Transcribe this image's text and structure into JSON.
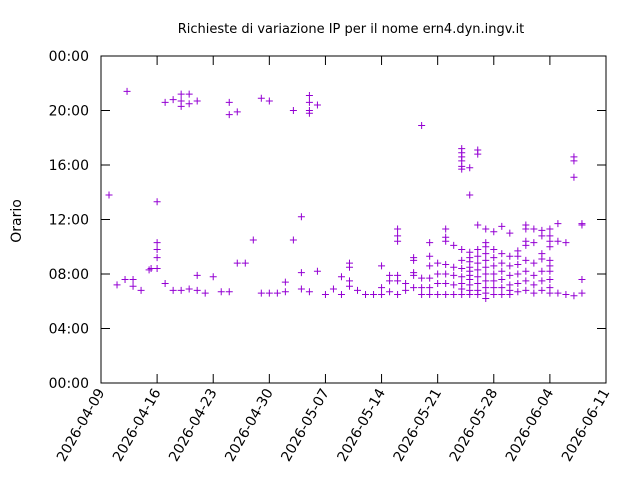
{
  "chart_data": {
    "type": "scatter",
    "title": "Richieste di variazione IP per il nome ern4.dyn.ingv.it",
    "xlabel": "",
    "ylabel": "Orario",
    "marker": "+",
    "color": "#9400d3",
    "grid": false,
    "xlim": [
      "2026-04-09",
      "2026-06-11"
    ],
    "ylim": [
      0,
      24
    ],
    "x_ticks": [
      "2026-04-09",
      "2026-04-16",
      "2026-04-23",
      "2026-04-30",
      "2026-05-07",
      "2026-05-14",
      "2026-05-21",
      "2026-05-28",
      "2026-06-04",
      "2026-06-11"
    ],
    "y_ticks": [
      "00:00",
      "04:00",
      "08:00",
      "12:00",
      "16:00",
      "20:00",
      "00:00"
    ],
    "points": [
      [
        "2026-04-10 00:00",
        13.8
      ],
      [
        "2026-04-11 00:00",
        7.2
      ],
      [
        "2026-04-12 00:00",
        7.6
      ],
      [
        "2026-04-12 06:00",
        21.4
      ],
      [
        "2026-04-13 00:00",
        7.6
      ],
      [
        "2026-04-13 00:00",
        7.1
      ],
      [
        "2026-04-14 00:00",
        6.8
      ],
      [
        "2026-04-15 00:00",
        8.3
      ],
      [
        "2026-04-15 06:00",
        8.4
      ],
      [
        "2026-04-16 00:00",
        13.3
      ],
      [
        "2026-04-16 00:00",
        10.3
      ],
      [
        "2026-04-16 00:00",
        9.8
      ],
      [
        "2026-04-16 00:00",
        9.2
      ],
      [
        "2026-04-16 00:00",
        8.4
      ],
      [
        "2026-04-17 00:00",
        20.6
      ],
      [
        "2026-04-17 00:00",
        7.3
      ],
      [
        "2026-04-18 00:00",
        20.8
      ],
      [
        "2026-04-18 00:00",
        6.8
      ],
      [
        "2026-04-19 00:00",
        21.2
      ],
      [
        "2026-04-19 00:00",
        20.7
      ],
      [
        "2026-04-19 00:00",
        20.3
      ],
      [
        "2026-04-19 00:00",
        6.8
      ],
      [
        "2026-04-20 00:00",
        21.2
      ],
      [
        "2026-04-20 00:00",
        20.5
      ],
      [
        "2026-04-20 00:00",
        6.9
      ],
      [
        "2026-04-21 00:00",
        20.7
      ],
      [
        "2026-04-21 00:00",
        7.9
      ],
      [
        "2026-04-21 00:00",
        6.8
      ],
      [
        "2026-04-22 00:00",
        6.6
      ],
      [
        "2026-04-23 00:00",
        7.8
      ],
      [
        "2026-04-24 00:00",
        6.7
      ],
      [
        "2026-04-25 00:00",
        20.6
      ],
      [
        "2026-04-25 00:00",
        19.7
      ],
      [
        "2026-04-25 00:00",
        6.7
      ],
      [
        "2026-04-26 00:00",
        19.9
      ],
      [
        "2026-04-26 00:00",
        8.8
      ],
      [
        "2026-04-27 00:00",
        8.8
      ],
      [
        "2026-04-28 00:00",
        10.5
      ],
      [
        "2026-04-29 00:00",
        20.9
      ],
      [
        "2026-04-29 00:00",
        6.6
      ],
      [
        "2026-04-30 00:00",
        20.7
      ],
      [
        "2026-04-30 00:00",
        6.6
      ],
      [
        "2026-05-01 00:00",
        6.6
      ],
      [
        "2026-05-02 00:00",
        7.4
      ],
      [
        "2026-05-02 00:00",
        6.7
      ],
      [
        "2026-05-03 00:00",
        20.0
      ],
      [
        "2026-05-03 00:00",
        10.5
      ],
      [
        "2026-05-04 00:00",
        12.2
      ],
      [
        "2026-05-04 00:00",
        8.1
      ],
      [
        "2026-05-04 00:00",
        6.9
      ],
      [
        "2026-05-05 00:00",
        21.1
      ],
      [
        "2026-05-05 00:00",
        20.6
      ],
      [
        "2026-05-05 00:00",
        20.0
      ],
      [
        "2026-05-05 00:00",
        19.8
      ],
      [
        "2026-05-05 00:00",
        6.7
      ],
      [
        "2026-05-06 00:00",
        20.4
      ],
      [
        "2026-05-06 00:00",
        8.2
      ],
      [
        "2026-05-07 00:00",
        6.5
      ],
      [
        "2026-05-08 00:00",
        6.9
      ],
      [
        "2026-05-09 00:00",
        7.8
      ],
      [
        "2026-05-09 00:00",
        6.5
      ],
      [
        "2026-05-10 00:00",
        8.8
      ],
      [
        "2026-05-10 00:00",
        8.5
      ],
      [
        "2026-05-10 00:00",
        7.5
      ],
      [
        "2026-05-10 00:00",
        7.1
      ],
      [
        "2026-05-11 00:00",
        6.8
      ],
      [
        "2026-05-12 00:00",
        6.5
      ],
      [
        "2026-05-13 00:00",
        6.5
      ],
      [
        "2026-05-14 00:00",
        8.6
      ],
      [
        "2026-05-14 00:00",
        7.0
      ],
      [
        "2026-05-14 00:00",
        6.5
      ],
      [
        "2026-05-15 00:00",
        7.9
      ],
      [
        "2026-05-15 00:00",
        7.5
      ],
      [
        "2026-05-15 00:00",
        6.7
      ],
      [
        "2026-05-16 00:00",
        11.3
      ],
      [
        "2026-05-16 00:00",
        10.8
      ],
      [
        "2026-05-16 00:00",
        10.4
      ],
      [
        "2026-05-16 00:00",
        7.9
      ],
      [
        "2026-05-16 00:00",
        7.5
      ],
      [
        "2026-05-16 00:00",
        6.5
      ],
      [
        "2026-05-17 00:00",
        7.3
      ],
      [
        "2026-05-17 00:00",
        6.8
      ],
      [
        "2026-05-18 00:00",
        9.2
      ],
      [
        "2026-05-18 00:00",
        9.0
      ],
      [
        "2026-05-18 00:00",
        8.1
      ],
      [
        "2026-05-18 00:00",
        7.9
      ],
      [
        "2026-05-18 00:00",
        7.0
      ],
      [
        "2026-05-19 00:00",
        18.9
      ],
      [
        "2026-05-19 00:00",
        7.7
      ],
      [
        "2026-05-19 00:00",
        7.0
      ],
      [
        "2026-05-19 00:00",
        6.5
      ],
      [
        "2026-05-20 00:00",
        10.3
      ],
      [
        "2026-05-20 00:00",
        9.3
      ],
      [
        "2026-05-20 00:00",
        8.6
      ],
      [
        "2026-05-20 00:00",
        7.7
      ],
      [
        "2026-05-20 00:00",
        7.0
      ],
      [
        "2026-05-20 00:00",
        6.5
      ],
      [
        "2026-05-21 00:00",
        8.8
      ],
      [
        "2026-05-21 00:00",
        8.0
      ],
      [
        "2026-05-21 00:00",
        7.3
      ],
      [
        "2026-05-21 00:00",
        6.5
      ],
      [
        "2026-05-22 00:00",
        11.3
      ],
      [
        "2026-05-22 00:00",
        10.7
      ],
      [
        "2026-05-22 00:00",
        10.4
      ],
      [
        "2026-05-22 00:00",
        8.7
      ],
      [
        "2026-05-22 00:00",
        8.0
      ],
      [
        "2026-05-22 00:00",
        7.3
      ],
      [
        "2026-05-22 00:00",
        6.5
      ],
      [
        "2026-05-23 00:00",
        10.1
      ],
      [
        "2026-05-23 00:00",
        8.5
      ],
      [
        "2026-05-23 00:00",
        7.9
      ],
      [
        "2026-05-23 00:00",
        7.2
      ],
      [
        "2026-05-23 00:00",
        6.5
      ],
      [
        "2026-05-24 00:00",
        17.2
      ],
      [
        "2026-05-24 00:00",
        16.9
      ],
      [
        "2026-05-24 00:00",
        16.6
      ],
      [
        "2026-05-24 00:00",
        16.3
      ],
      [
        "2026-05-24 00:00",
        15.9
      ],
      [
        "2026-05-24 00:00",
        15.7
      ],
      [
        "2026-05-24 00:00",
        9.8
      ],
      [
        "2026-05-24 00:00",
        9.0
      ],
      [
        "2026-05-24 00:00",
        8.4
      ],
      [
        "2026-05-24 00:00",
        7.8
      ],
      [
        "2026-05-24 00:00",
        7.3
      ],
      [
        "2026-05-24 00:00",
        6.9
      ],
      [
        "2026-05-24 00:00",
        6.5
      ],
      [
        "2026-05-25 00:00",
        15.8
      ],
      [
        "2026-05-25 00:00",
        13.8
      ],
      [
        "2026-05-25 00:00",
        9.6
      ],
      [
        "2026-05-25 00:00",
        9.2
      ],
      [
        "2026-05-25 00:00",
        8.9
      ],
      [
        "2026-05-25 00:00",
        8.5
      ],
      [
        "2026-05-25 00:00",
        8.2
      ],
      [
        "2026-05-25 00:00",
        7.9
      ],
      [
        "2026-05-25 00:00",
        7.6
      ],
      [
        "2026-05-25 00:00",
        7.2
      ],
      [
        "2026-05-25 00:00",
        6.8
      ],
      [
        "2026-05-25 00:00",
        6.5
      ],
      [
        "2026-05-26 00:00",
        17.1
      ],
      [
        "2026-05-26 00:00",
        16.8
      ],
      [
        "2026-05-26 00:00",
        11.6
      ],
      [
        "2026-05-26 00:00",
        9.8
      ],
      [
        "2026-05-26 00:00",
        9.3
      ],
      [
        "2026-05-26 00:00",
        8.8
      ],
      [
        "2026-05-26 00:00",
        8.3
      ],
      [
        "2026-05-26 00:00",
        7.8
      ],
      [
        "2026-05-26 00:00",
        7.3
      ],
      [
        "2026-05-26 00:00",
        6.8
      ],
      [
        "2026-05-26 00:00",
        6.5
      ],
      [
        "2026-05-27 00:00",
        11.3
      ],
      [
        "2026-05-27 00:00",
        10.3
      ],
      [
        "2026-05-27 00:00",
        10.0
      ],
      [
        "2026-05-27 00:00",
        9.5
      ],
      [
        "2026-05-27 00:00",
        9.0
      ],
      [
        "2026-05-27 00:00",
        8.5
      ],
      [
        "2026-05-27 00:00",
        8.0
      ],
      [
        "2026-05-27 00:00",
        7.5
      ],
      [
        "2026-05-27 00:00",
        7.0
      ],
      [
        "2026-05-27 00:00",
        6.6
      ],
      [
        "2026-05-27 00:00",
        6.2
      ],
      [
        "2026-05-28 00:00",
        11.1
      ],
      [
        "2026-05-28 00:00",
        9.8
      ],
      [
        "2026-05-28 00:00",
        9.2
      ],
      [
        "2026-05-28 00:00",
        8.6
      ],
      [
        "2026-05-28 00:00",
        8.0
      ],
      [
        "2026-05-28 00:00",
        7.5
      ],
      [
        "2026-05-28 00:00",
        7.0
      ],
      [
        "2026-05-28 00:00",
        6.5
      ],
      [
        "2026-05-29 00:00",
        11.5
      ],
      [
        "2026-05-29 00:00",
        9.5
      ],
      [
        "2026-05-29 00:00",
        8.8
      ],
      [
        "2026-05-29 00:00",
        8.2
      ],
      [
        "2026-05-29 00:00",
        7.6
      ],
      [
        "2026-05-29 00:00",
        7.0
      ],
      [
        "2026-05-29 00:00",
        6.5
      ],
      [
        "2026-05-30 00:00",
        11.0
      ],
      [
        "2026-05-30 00:00",
        9.3
      ],
      [
        "2026-05-30 00:00",
        8.6
      ],
      [
        "2026-05-30 00:00",
        7.9
      ],
      [
        "2026-05-30 00:00",
        7.2
      ],
      [
        "2026-05-30 00:00",
        6.8
      ],
      [
        "2026-05-30 00:00",
        6.5
      ],
      [
        "2026-05-31 00:00",
        9.7
      ],
      [
        "2026-05-31 00:00",
        9.3
      ],
      [
        "2026-05-31 00:00",
        8.7
      ],
      [
        "2026-05-31 00:00",
        8.0
      ],
      [
        "2026-05-31 00:00",
        7.3
      ],
      [
        "2026-05-31 00:00",
        6.7
      ],
      [
        "2026-06-01 00:00",
        11.6
      ],
      [
        "2026-06-01 00:00",
        11.3
      ],
      [
        "2026-06-01 00:00",
        10.4
      ],
      [
        "2026-06-01 00:00",
        10.1
      ],
      [
        "2026-06-01 00:00",
        9.0
      ],
      [
        "2026-06-01 00:00",
        8.2
      ],
      [
        "2026-06-01 00:00",
        7.5
      ],
      [
        "2026-06-01 00:00",
        6.8
      ],
      [
        "2026-06-02 00:00",
        11.3
      ],
      [
        "2026-06-02 00:00",
        10.3
      ],
      [
        "2026-06-02 00:00",
        8.8
      ],
      [
        "2026-06-02 00:00",
        7.9
      ],
      [
        "2026-06-02 00:00",
        7.2
      ],
      [
        "2026-06-02 00:00",
        6.6
      ],
      [
        "2026-06-03 00:00",
        11.2
      ],
      [
        "2026-06-03 00:00",
        10.8
      ],
      [
        "2026-06-03 00:00",
        9.5
      ],
      [
        "2026-06-03 00:00",
        9.1
      ],
      [
        "2026-06-03 00:00",
        8.2
      ],
      [
        "2026-06-03 00:00",
        7.5
      ],
      [
        "2026-06-03 00:00",
        6.8
      ],
      [
        "2026-06-04 00:00",
        11.3
      ],
      [
        "2026-06-04 00:00",
        10.8
      ],
      [
        "2026-06-04 00:00",
        10.4
      ],
      [
        "2026-06-04 00:00",
        10.0
      ],
      [
        "2026-06-04 00:00",
        9.0
      ],
      [
        "2026-06-04 00:00",
        8.6
      ],
      [
        "2026-06-04 00:00",
        8.2
      ],
      [
        "2026-06-04 00:00",
        7.6
      ],
      [
        "2026-06-04 00:00",
        7.0
      ],
      [
        "2026-06-04 00:00",
        6.6
      ],
      [
        "2026-06-05 00:00",
        11.7
      ],
      [
        "2026-06-05 00:00",
        10.4
      ],
      [
        "2026-06-05 00:00",
        6.6
      ],
      [
        "2026-06-06 00:00",
        10.3
      ],
      [
        "2026-06-06 00:00",
        6.5
      ],
      [
        "2026-06-07 00:00",
        16.6
      ],
      [
        "2026-06-07 00:00",
        16.3
      ],
      [
        "2026-06-07 00:00",
        15.1
      ],
      [
        "2026-06-07 00:00",
        6.4
      ],
      [
        "2026-06-08 00:00",
        11.7
      ],
      [
        "2026-06-08 00:00",
        11.6
      ],
      [
        "2026-06-08 00:00",
        7.6
      ],
      [
        "2026-06-08 00:00",
        6.6
      ]
    ]
  }
}
